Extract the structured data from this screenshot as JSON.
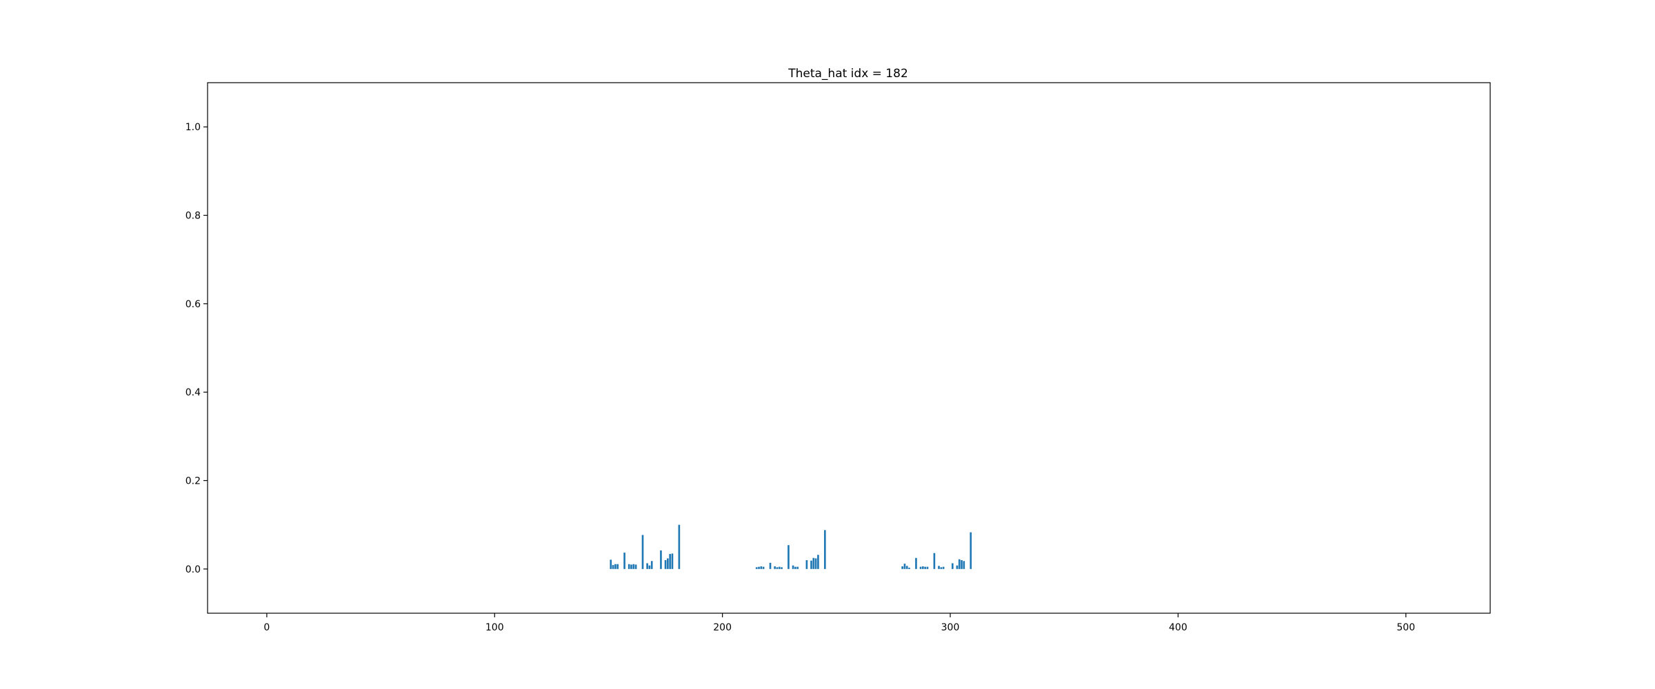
{
  "chart_data": {
    "type": "bar",
    "title": "Theta_hat idx = 182",
    "xlabel": "",
    "ylabel": "",
    "xlim": [
      -26,
      537
    ],
    "ylim": [
      -0.1,
      1.1
    ],
    "xticks": [
      0,
      100,
      200,
      300,
      400,
      500
    ],
    "xtick_labels": [
      "0",
      "100",
      "200",
      "300",
      "400",
      "500"
    ],
    "yticks": [
      0.0,
      0.2,
      0.4,
      0.6,
      0.8,
      1.0
    ],
    "ytick_labels": [
      "0.0",
      "0.2",
      "0.4",
      "0.6",
      "0.8",
      "1.0"
    ],
    "grid": false,
    "bar_color": "#1f77b4",
    "x": [
      151,
      152,
      153,
      154,
      157,
      159,
      160,
      161,
      162,
      165,
      167,
      168,
      169,
      173,
      175,
      176,
      177,
      178,
      181,
      215,
      216,
      217,
      218,
      221,
      223,
      224,
      225,
      226,
      229,
      231,
      232,
      233,
      237,
      239,
      240,
      241,
      242,
      245,
      279,
      280,
      281,
      282,
      285,
      287,
      288,
      289,
      290,
      293,
      295,
      296,
      297,
      301,
      303,
      304,
      305,
      306,
      309
    ],
    "values": [
      0.021,
      0.009,
      0.011,
      0.011,
      0.037,
      0.011,
      0.01,
      0.011,
      0.01,
      0.077,
      0.013,
      0.008,
      0.018,
      0.042,
      0.02,
      0.024,
      0.034,
      0.035,
      0.1,
      0.004,
      0.005,
      0.006,
      0.005,
      0.014,
      0.006,
      0.004,
      0.005,
      0.004,
      0.054,
      0.008,
      0.005,
      0.005,
      0.02,
      0.019,
      0.025,
      0.024,
      0.032,
      0.088,
      0.006,
      0.012,
      0.007,
      0.003,
      0.025,
      0.005,
      0.006,
      0.005,
      0.005,
      0.036,
      0.007,
      0.004,
      0.005,
      0.013,
      0.008,
      0.022,
      0.02,
      0.018,
      0.083
    ]
  }
}
